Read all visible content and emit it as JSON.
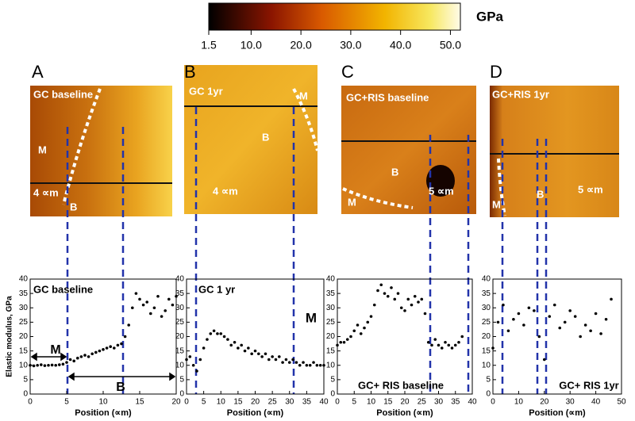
{
  "figure": {
    "colorbar": {
      "unit": "GPa",
      "lim": [
        1.5,
        52
      ],
      "ticks": [
        1.5,
        {
          "value": 10,
          "label": "10.0"
        },
        {
          "value": 20,
          "label": "20.0"
        },
        {
          "value": 30,
          "label": "30.0"
        },
        {
          "value": 40,
          "label": "40.0"
        },
        {
          "value": 50,
          "label": "50.0"
        }
      ]
    },
    "panels": [
      {
        "letter": "A",
        "image_labels": [
          "GC baseline",
          "M",
          "B",
          "4 ∝m"
        ]
      },
      {
        "letter": "B",
        "image_labels": [
          "GC 1yr",
          "M",
          "B",
          "4 ∝m"
        ]
      },
      {
        "letter": "C",
        "image_labels": [
          "GC+RIS baseline",
          "B",
          "M",
          "5 ∝m"
        ]
      },
      {
        "letter": "D",
        "image_labels": [
          "GC+RIS 1yr",
          "M",
          "B",
          "5 ∝m"
        ]
      }
    ]
  },
  "chart_data": [
    {
      "type": "scatter",
      "y_label": "Elastic modulus, GPa",
      "x_label": "Position (∝m)",
      "annotations": [
        "GC baseline",
        "M",
        "B"
      ],
      "x": [
        0,
        0.5,
        1,
        1.5,
        2,
        2.5,
        3,
        3.5,
        4,
        4.5,
        5,
        5.5,
        6,
        6.5,
        7,
        7.5,
        8,
        8.5,
        9,
        9.5,
        10,
        10.5,
        11,
        11.5,
        12,
        12.5,
        13,
        13.5,
        14,
        14.5,
        15,
        15.5,
        16,
        16.5,
        17,
        17.5,
        18,
        18.5,
        19,
        19.5,
        20
      ],
      "values": [
        10,
        9.8,
        10,
        10.2,
        9.9,
        10,
        10.1,
        10,
        10.2,
        10.4,
        11,
        12,
        11.5,
        12.5,
        13,
        13.5,
        13,
        14,
        14.5,
        15,
        15.5,
        16,
        16.5,
        16,
        17,
        17.5,
        20,
        24,
        30,
        35,
        33,
        31,
        32,
        28,
        30,
        34,
        27,
        29,
        33,
        31,
        34
      ],
      "xlim": [
        0,
        20
      ],
      "ylim": [
        0,
        40
      ],
      "xticks": [
        0,
        5,
        10,
        15,
        20
      ],
      "yticks": [
        0,
        5,
        10,
        15,
        20,
        25,
        30,
        35,
        40
      ]
    },
    {
      "type": "scatter",
      "x_label": "Position (∝m)",
      "annotations": [
        "GC 1 yr",
        "M"
      ],
      "x": [
        0,
        1,
        2,
        3,
        4,
        5,
        6,
        7,
        8,
        9,
        10,
        11,
        12,
        13,
        14,
        15,
        16,
        17,
        18,
        19,
        20,
        21,
        22,
        23,
        24,
        25,
        26,
        27,
        28,
        29,
        30,
        31,
        32,
        33,
        34,
        35,
        36,
        37,
        38,
        39,
        40
      ],
      "values": [
        12,
        13,
        10,
        8,
        12,
        16,
        19,
        21,
        22,
        21,
        21,
        20,
        19,
        17,
        18,
        16,
        17,
        15,
        16,
        14,
        15,
        14,
        13,
        14,
        12,
        13,
        12,
        13,
        11,
        12,
        11,
        12,
        11,
        10,
        11,
        10,
        10,
        11,
        10,
        10,
        10
      ],
      "xlim": [
        0,
        40
      ],
      "ylim": [
        0,
        40
      ],
      "xticks": [
        0,
        5,
        10,
        15,
        20,
        25,
        30,
        35,
        40
      ],
      "yticks": [
        0,
        5,
        10,
        15,
        20,
        25,
        30,
        35,
        40
      ]
    },
    {
      "type": "scatter",
      "x_label": "Position (∝m)",
      "annotations": [
        "GC+ RIS baseline"
      ],
      "x": [
        0,
        1,
        2,
        3,
        4,
        5,
        6,
        7,
        8,
        9,
        10,
        11,
        12,
        13,
        14,
        15,
        16,
        17,
        18,
        19,
        20,
        21,
        22,
        23,
        24,
        25,
        26,
        27,
        28,
        29,
        30,
        31,
        32,
        33,
        34,
        35,
        36,
        37
      ],
      "values": [
        17,
        18,
        18,
        19,
        20,
        22,
        24,
        21,
        23,
        25,
        27,
        31,
        36,
        38,
        35,
        34,
        37,
        33,
        35,
        30,
        29,
        33,
        31,
        34,
        32,
        33,
        28,
        18,
        17,
        19,
        17,
        16,
        18,
        17,
        16,
        17,
        18,
        20
      ],
      "xlim": [
        0,
        40
      ],
      "ylim": [
        0,
        40
      ],
      "xticks": [
        0,
        5,
        10,
        15,
        20,
        25,
        30,
        35,
        40
      ],
      "yticks": [
        0,
        5,
        10,
        15,
        20,
        25,
        30,
        35,
        40
      ]
    },
    {
      "type": "scatter",
      "x_label": "Position (∝m)",
      "annotations": [
        "GC+ RIS 1yr"
      ],
      "x": [
        0,
        2,
        4,
        6,
        8,
        10,
        12,
        14,
        16,
        18,
        20,
        22,
        24,
        26,
        28,
        30,
        32,
        34,
        36,
        38,
        40,
        42,
        44,
        46
      ],
      "values": [
        16,
        25,
        31,
        22,
        26,
        28,
        24,
        30,
        29,
        20,
        12,
        27,
        31,
        23,
        25,
        29,
        27,
        20,
        24,
        22,
        28,
        21,
        26,
        33
      ],
      "xlim": [
        0,
        50
      ],
      "ylim": [
        0,
        40
      ],
      "xticks": [
        0,
        10,
        20,
        30,
        40,
        50
      ],
      "yticks": [
        0,
        5,
        10,
        15,
        20,
        25,
        30,
        35,
        40
      ]
    }
  ]
}
